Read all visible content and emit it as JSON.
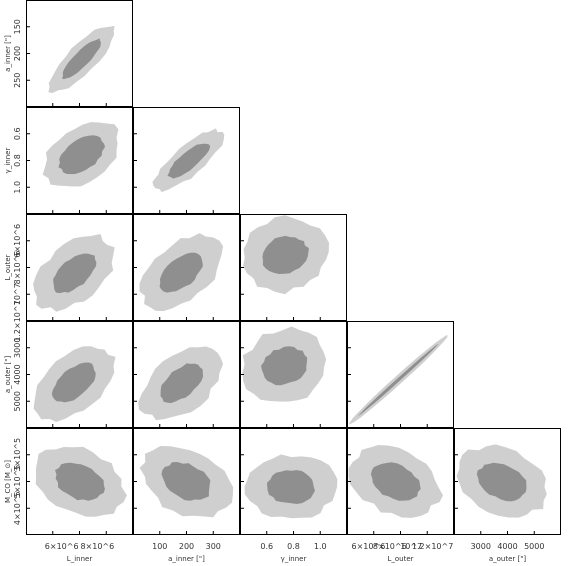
{
  "chart_data": {
    "type": "corner",
    "description_colors": {
      "outer": "#cfcfcf",
      "inner": "#8f8f8f",
      "axis": "#000000"
    },
    "parameters": [
      {
        "key": "L_inner",
        "label": "L_inner",
        "ticks": [
          "6×10^6",
          "8×10^6"
        ]
      },
      {
        "key": "a_inner",
        "label": "a_inner [\"]",
        "ticks": [
          "100",
          "200",
          "300"
        ]
      },
      {
        "key": "g_inner",
        "label": "γ_inner",
        "ticks": [
          "0.6",
          "0.8",
          "1.0"
        ]
      },
      {
        "key": "L_outer",
        "label": "L_outer",
        "ticks": [
          "6×10^6",
          "8×10^6",
          "10^7",
          "1.2×10^7"
        ]
      },
      {
        "key": "a_outer",
        "label": "a_outer [\"]",
        "ticks": [
          "3000",
          "4000",
          "5000"
        ]
      },
      {
        "key": "M_CO",
        "label": "M_CO [M_⊙]",
        "ticks": [
          "3×10^5",
          "5×10^5",
          "4×10^5"
        ]
      }
    ],
    "ylabels": [
      {
        "row": 0,
        "text": "a_inner [\"]",
        "ticks": [
          "150",
          "200",
          "250"
        ]
      },
      {
        "row": 1,
        "text": "γ_inner",
        "ticks": [
          "0.6",
          "0.8",
          "1.0"
        ]
      },
      {
        "row": 2,
        "text": "L_outer",
        "ticks": [
          "6×10^6",
          "8×10^6",
          "10^7",
          "1.2×10^7"
        ]
      },
      {
        "row": 3,
        "text": "a_outer [\"]",
        "ticks": [
          "3000",
          "4000",
          "5000"
        ]
      },
      {
        "row": 4,
        "text": "M_CO [M_⊙]",
        "ticks": [
          "3×10^5",
          "5×10^5",
          "4×10^5"
        ]
      }
    ],
    "xlabels": [
      {
        "col": 0,
        "text": "L_inner",
        "ticks": [
          "6×10^6",
          "8×10^6"
        ]
      },
      {
        "col": 1,
        "text": "a_inner [\"]",
        "ticks": [
          "100",
          "200",
          "300"
        ]
      },
      {
        "col": 2,
        "text": "γ_inner",
        "ticks": [
          "0.6",
          "0.8",
          "1.0"
        ]
      },
      {
        "col": 3,
        "text": "L_outer",
        "ticks": [
          "6×10^6",
          "8×10^6",
          "10^7",
          "1.2×10^7"
        ]
      },
      {
        "col": 4,
        "text": "a_outer [\"]",
        "ticks": [
          "3000",
          "4000",
          "5000"
        ]
      }
    ],
    "panels": [
      {
        "row": 0,
        "col": 0,
        "shape": "diag-up",
        "angle": -45,
        "outer": [
          0.42,
          0.13
        ],
        "inner": [
          0.25,
          0.07
        ],
        "center": [
          0.52,
          0.55
        ]
      },
      {
        "row": 1,
        "col": 0,
        "shape": "blob",
        "angle": -35,
        "outer": [
          0.4,
          0.26
        ],
        "inner": [
          0.24,
          0.14
        ],
        "center": [
          0.52,
          0.45
        ]
      },
      {
        "row": 1,
        "col": 1,
        "shape": "diag-up",
        "angle": -40,
        "outer": [
          0.4,
          0.14
        ],
        "inner": [
          0.24,
          0.08
        ],
        "center": [
          0.52,
          0.5
        ]
      },
      {
        "row": 2,
        "col": 0,
        "shape": "blob",
        "angle": -40,
        "outer": [
          0.44,
          0.26
        ],
        "inner": [
          0.24,
          0.13
        ],
        "center": [
          0.45,
          0.55
        ]
      },
      {
        "row": 2,
        "col": 1,
        "shape": "blob",
        "angle": -40,
        "outer": [
          0.44,
          0.26
        ],
        "inner": [
          0.24,
          0.13
        ],
        "center": [
          0.45,
          0.55
        ]
      },
      {
        "row": 2,
        "col": 2,
        "shape": "blob",
        "angle": -15,
        "outer": [
          0.4,
          0.34
        ],
        "inner": [
          0.22,
          0.17
        ],
        "center": [
          0.42,
          0.38
        ]
      },
      {
        "row": 3,
        "col": 0,
        "shape": "blob",
        "angle": -40,
        "outer": [
          0.44,
          0.26
        ],
        "inner": [
          0.24,
          0.13
        ],
        "center": [
          0.45,
          0.58
        ]
      },
      {
        "row": 3,
        "col": 1,
        "shape": "blob",
        "angle": -40,
        "outer": [
          0.44,
          0.26
        ],
        "inner": [
          0.24,
          0.13
        ],
        "center": [
          0.45,
          0.58
        ]
      },
      {
        "row": 3,
        "col": 2,
        "shape": "blob",
        "angle": -20,
        "outer": [
          0.4,
          0.34
        ],
        "inner": [
          0.22,
          0.17
        ],
        "center": [
          0.42,
          0.42
        ]
      },
      {
        "row": 3,
        "col": 3,
        "shape": "line",
        "angle": -42,
        "outer": [
          0.62,
          0.04
        ],
        "inner": [
          0.5,
          0.015
        ],
        "center": [
          0.48,
          0.55
        ]
      },
      {
        "row": 4,
        "col": 0,
        "shape": "blob",
        "angle": 25,
        "outer": [
          0.44,
          0.3
        ],
        "inner": [
          0.24,
          0.16
        ],
        "center": [
          0.5,
          0.5
        ]
      },
      {
        "row": 4,
        "col": 1,
        "shape": "blob",
        "angle": 25,
        "outer": [
          0.44,
          0.3
        ],
        "inner": [
          0.24,
          0.16
        ],
        "center": [
          0.5,
          0.5
        ]
      },
      {
        "row": 4,
        "col": 2,
        "shape": "blob",
        "angle": 0,
        "outer": [
          0.42,
          0.3
        ],
        "inner": [
          0.22,
          0.16
        ],
        "center": [
          0.48,
          0.55
        ]
      },
      {
        "row": 4,
        "col": 3,
        "shape": "blob",
        "angle": 25,
        "outer": [
          0.44,
          0.3
        ],
        "inner": [
          0.24,
          0.16
        ],
        "center": [
          0.45,
          0.5
        ]
      },
      {
        "row": 4,
        "col": 4,
        "shape": "blob",
        "angle": 25,
        "outer": [
          0.44,
          0.3
        ],
        "inner": [
          0.24,
          0.16
        ],
        "center": [
          0.45,
          0.5
        ]
      }
    ]
  }
}
